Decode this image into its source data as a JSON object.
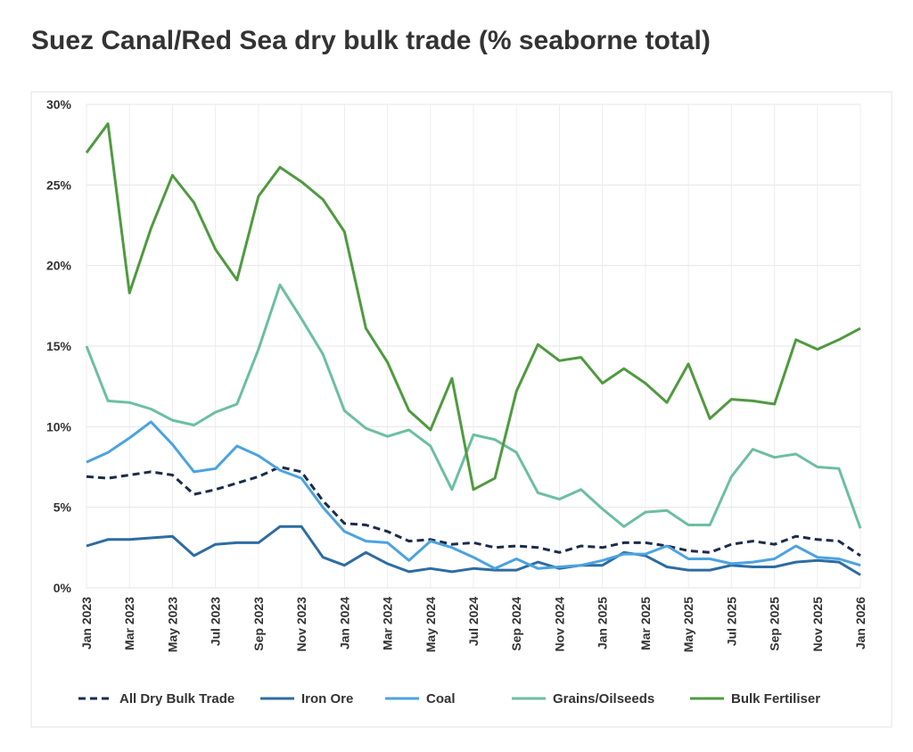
{
  "chart_data": {
    "type": "line",
    "title": "Suez Canal/Red Sea dry bulk trade (% seaborne total)",
    "categories": [
      "Jan 2023",
      null,
      "Mar 2023",
      null,
      "May 2023",
      null,
      "Jul 2023",
      null,
      "Sep 2023",
      null,
      "Nov 2023",
      null,
      "Jan 2024",
      null,
      "Mar 2024",
      null,
      "May 2024",
      null,
      "Jul 2024",
      null,
      "Sep 2024",
      null,
      "Nov 2024",
      null,
      "Jan 2025",
      null,
      "Mar 2025",
      null,
      "May 2025",
      null,
      "Jul 2025",
      null,
      "Sep 2025",
      null,
      "Nov 2025",
      null,
      "Jan 2026"
    ],
    "series": [
      {
        "name": "All Dry Bulk Trade",
        "color": "#1c2b4b",
        "dashed": true,
        "values": [
          6.9,
          6.8,
          7.0,
          7.2,
          7.0,
          5.8,
          6.1,
          6.5,
          6.9,
          7.5,
          7.2,
          5.4,
          4.0,
          3.9,
          3.5,
          2.9,
          3.0,
          2.7,
          2.8,
          2.5,
          2.6,
          2.5,
          2.2,
          2.6,
          2.5,
          2.8,
          2.8,
          2.6,
          2.3,
          2.2,
          2.7,
          2.9,
          2.7,
          3.2,
          3.0,
          2.9,
          2.0
        ]
      },
      {
        "name": "Iron Ore",
        "color": "#2d6ca3",
        "values": [
          2.6,
          3.0,
          3.0,
          3.1,
          3.2,
          2.0,
          2.7,
          2.8,
          2.8,
          3.8,
          3.8,
          1.9,
          1.4,
          2.2,
          1.5,
          1.0,
          1.2,
          1.0,
          1.2,
          1.1,
          1.1,
          1.6,
          1.2,
          1.4,
          1.4,
          2.2,
          2.0,
          1.3,
          1.1,
          1.1,
          1.4,
          1.3,
          1.3,
          1.6,
          1.7,
          1.6,
          0.8
        ]
      },
      {
        "name": "Coal",
        "color": "#4ba3e0",
        "values": [
          7.8,
          8.4,
          9.3,
          10.3,
          8.9,
          7.2,
          7.4,
          8.8,
          8.2,
          7.3,
          6.8,
          5.0,
          3.5,
          2.9,
          2.8,
          1.7,
          2.9,
          2.5,
          1.9,
          1.2,
          1.8,
          1.2,
          1.3,
          1.4,
          1.7,
          2.1,
          2.1,
          2.6,
          1.8,
          1.8,
          1.5,
          1.6,
          1.8,
          2.6,
          1.9,
          1.8,
          1.4
        ]
      },
      {
        "name": "Grains/Oilseeds",
        "color": "#6cbf9f",
        "values": [
          15.0,
          11.6,
          11.5,
          11.1,
          10.4,
          10.1,
          10.9,
          11.4,
          14.8,
          18.8,
          16.7,
          14.5,
          11.0,
          9.9,
          9.4,
          9.8,
          8.8,
          6.1,
          9.5,
          9.2,
          8.4,
          5.9,
          5.5,
          6.1,
          4.9,
          3.8,
          4.7,
          4.8,
          3.9,
          3.9,
          6.9,
          8.6,
          8.1,
          8.3,
          7.5,
          7.4,
          3.7
        ]
      },
      {
        "name": "Bulk Fertiliser",
        "color": "#4f9a3f",
        "values": [
          27.0,
          28.8,
          18.3,
          22.3,
          25.6,
          23.9,
          21.0,
          19.1,
          24.3,
          26.1,
          25.2,
          24.1,
          22.1,
          16.1,
          14.0,
          11.0,
          9.8,
          13.0,
          6.1,
          6.8,
          12.2,
          15.1,
          14.1,
          14.3,
          12.7,
          13.6,
          12.7,
          11.5,
          13.9,
          10.5,
          11.7,
          11.6,
          11.4,
          15.4,
          14.8,
          15.4,
          16.1
        ]
      }
    ],
    "ylim": [
      0,
      30
    ],
    "yticks": [
      {
        "value": 0,
        "label": "0%"
      },
      {
        "value": 5,
        "label": "5%"
      },
      {
        "value": 10,
        "label": "10%"
      },
      {
        "value": 15,
        "label": "15%"
      },
      {
        "value": 20,
        "label": "20%"
      },
      {
        "value": 25,
        "label": "25%"
      },
      {
        "value": 30,
        "label": "30%"
      }
    ],
    "grid": true,
    "legend": "bottom"
  }
}
